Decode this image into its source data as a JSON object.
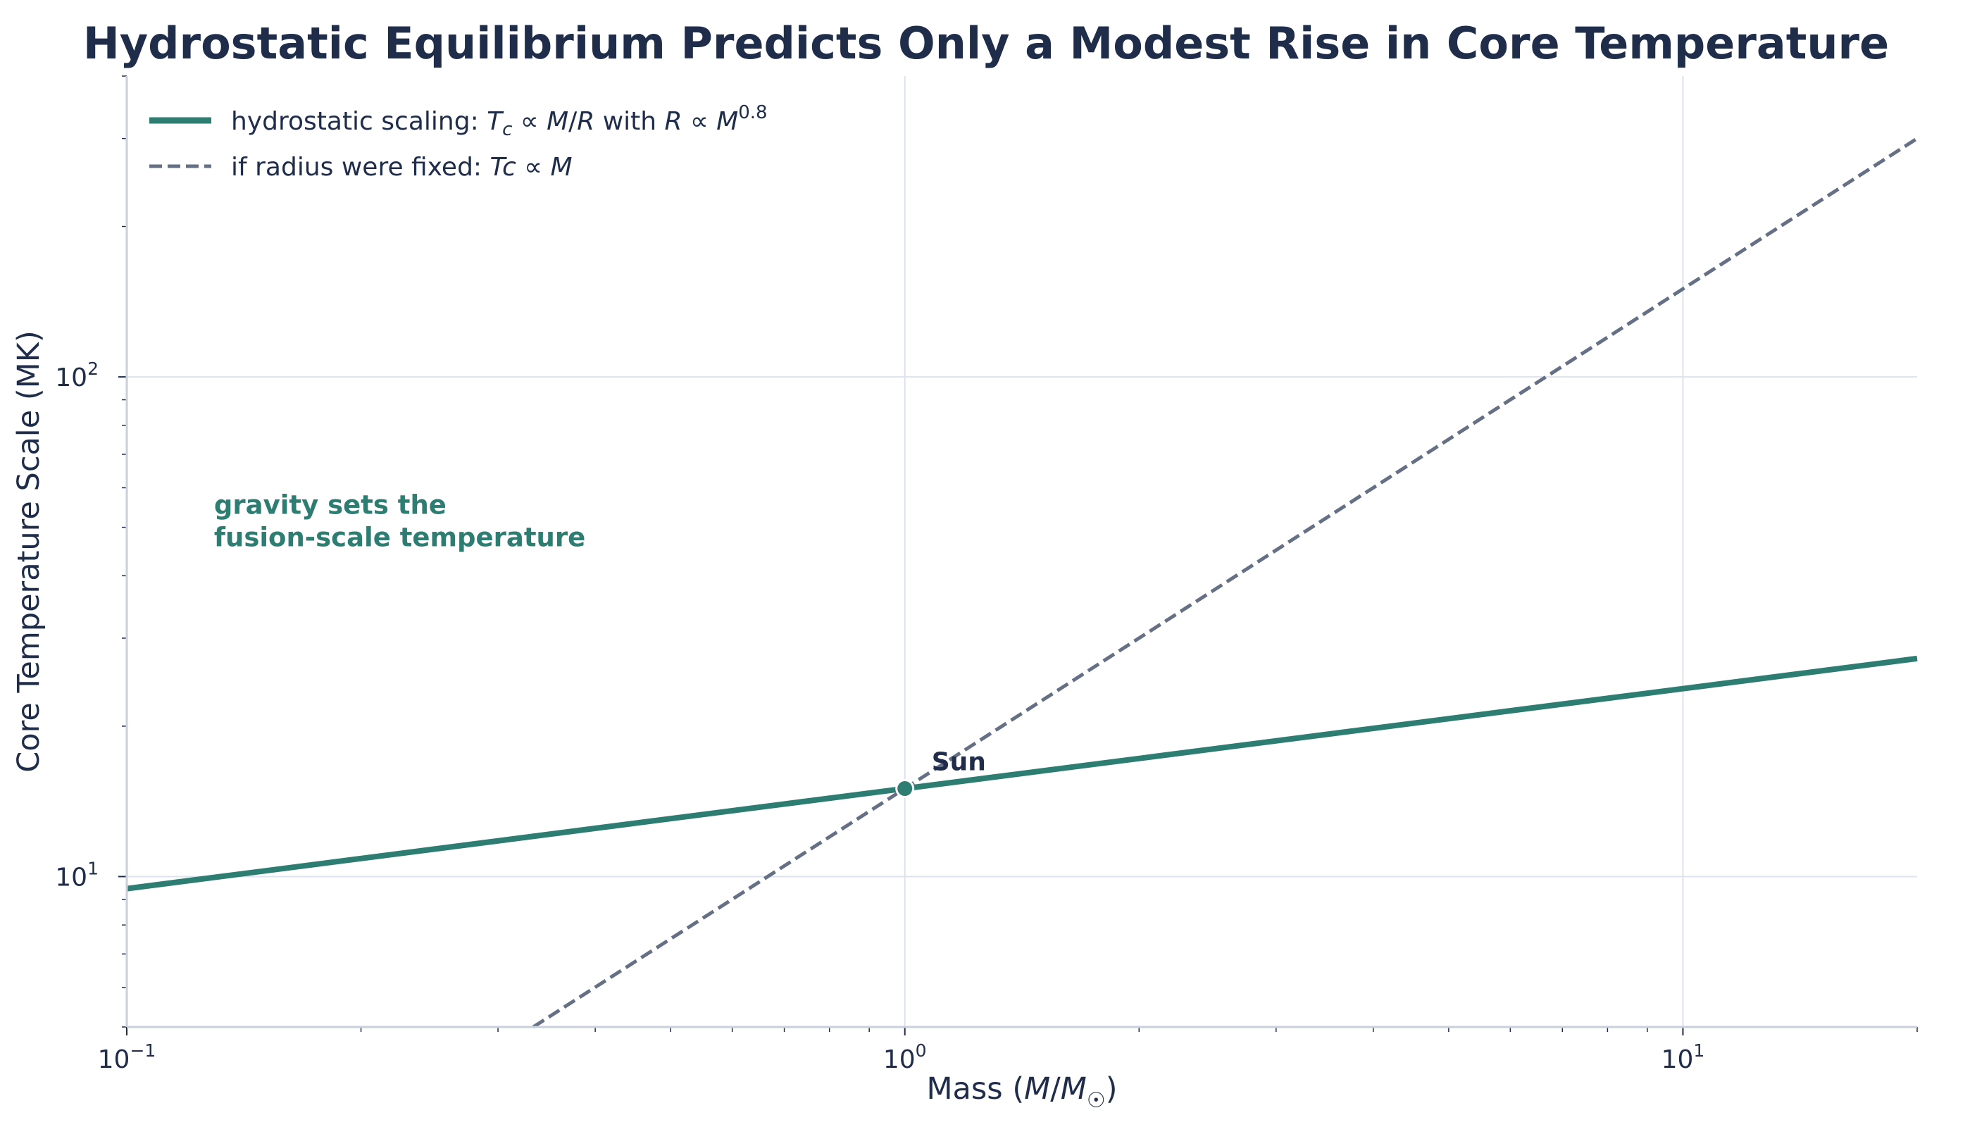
{
  "chart_data": {
    "type": "line",
    "title": "Hydrostatic Equilibrium Predicts Only a Modest Rise in Core Temperature",
    "xlabel": "Mass (M/M☉)",
    "ylabel": "Core Temperature Scale (MK)",
    "xscale": "log",
    "yscale": "log",
    "xlim": [
      0.1,
      20
    ],
    "ylim": [
      5,
      400
    ],
    "x_ticks": [
      {
        "value": 0.1,
        "label": "10",
        "exp": "−1"
      },
      {
        "value": 1,
        "label": "10",
        "exp": "0"
      },
      {
        "value": 10,
        "label": "10",
        "exp": "1"
      }
    ],
    "y_ticks": [
      {
        "value": 10,
        "label": "10",
        "exp": "1"
      },
      {
        "value": 100,
        "label": "10",
        "exp": "2"
      }
    ],
    "grid": true,
    "legend_placement": "top-left",
    "series": [
      {
        "name": "hydrostatic scaling: Tc ∝ M/R with R ∝ M^0.8",
        "style": "solid",
        "color": "#2e7d73",
        "x": [
          0.1,
          0.2,
          0.5,
          1,
          2,
          5,
          10,
          20
        ],
        "y": [
          9.46,
          10.87,
          13.06,
          15.0,
          17.23,
          20.7,
          23.77,
          27.31
        ]
      },
      {
        "name": "if radius were fixed: Tc ∝ M",
        "style": "dashed",
        "color": "#667085",
        "x": [
          0.333,
          1,
          10,
          20
        ],
        "y": [
          5.0,
          15.0,
          150,
          300
        ]
      }
    ],
    "legend": [
      {
        "text": "hydrostatic scaling: ",
        "math": "Tc ∝ M/R with R ∝ M0.8"
      },
      {
        "text": "if radius were fixed: ",
        "math": "Tc ∝ M"
      }
    ],
    "annotations": [
      {
        "text": "Sun",
        "x": 1,
        "y": 15,
        "marker": true
      },
      {
        "text": "gravity sets the",
        "text2": "fusion-scale temperature",
        "x": 0.13,
        "y": 55,
        "color": "#2e7d73"
      }
    ],
    "colors": {
      "text": "#1f2d4a",
      "grid": "#dde3ec",
      "spine": "#c8d0dc",
      "hydro": "#2e7d73",
      "fixed": "#667085"
    }
  }
}
